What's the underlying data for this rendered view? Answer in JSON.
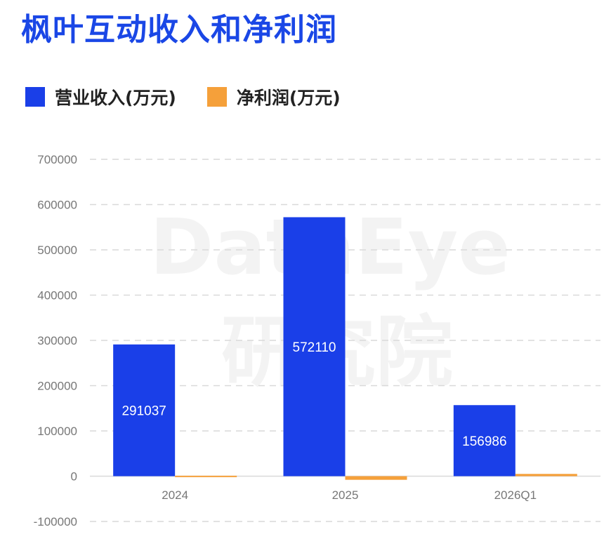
{
  "title": "枫叶互动收入和净利润",
  "watermark": {
    "line1": "DataEye",
    "line2": "研究院"
  },
  "colors": {
    "title": "#1a47e6",
    "revenue": "#1a3fe8",
    "profit": "#f5a03a",
    "grid": "#d9d9d9",
    "tick": "#777777"
  },
  "chart_data": {
    "type": "bar",
    "categories": [
      "2024",
      "2025",
      "2026Q1"
    ],
    "series": [
      {
        "name": "营业收入(万元)",
        "values": [
          291037,
          572110,
          156986
        ],
        "data_labels": [
          "291037",
          "572110",
          "156986"
        ]
      },
      {
        "name": "净利润(万元)",
        "values": [
          1000,
          -8000,
          5000
        ]
      }
    ],
    "ylim": [
      -100000,
      700000
    ],
    "yticks": [
      -100000,
      0,
      100000,
      200000,
      300000,
      400000,
      500000,
      600000,
      700000
    ],
    "ytick_labels": [
      "-100000",
      "0",
      "100000",
      "200000",
      "300000",
      "400000",
      "500000",
      "600000",
      "700000"
    ],
    "grid": true,
    "legend_position": "top-left"
  }
}
